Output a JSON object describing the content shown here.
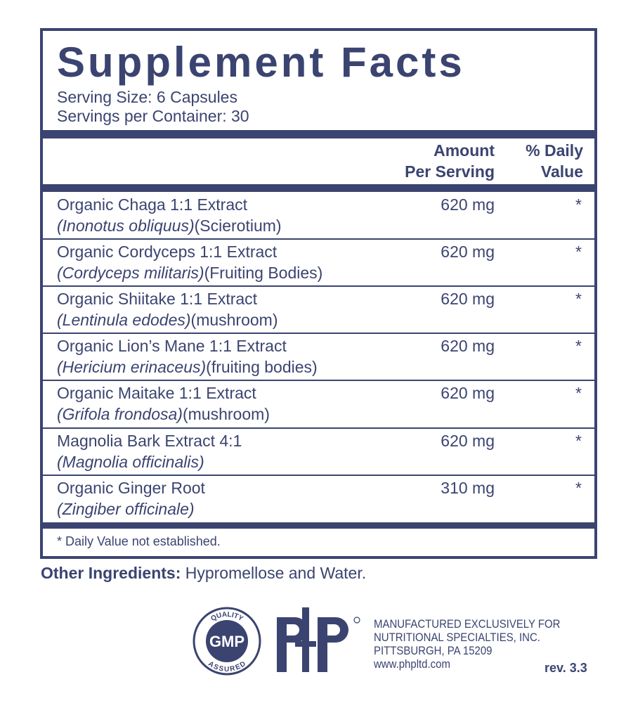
{
  "title": "Supplement Facts",
  "serving_size": "Serving Size: 6 Capsules",
  "servings_per_container": "Servings per Container: 30",
  "header": {
    "amount": [
      "Amount",
      "Per Serving"
    ],
    "daily_value": [
      "% Daily",
      "Value"
    ]
  },
  "rows": [
    {
      "name": "Organic Chaga 1:1 Extract",
      "latin": "(Inonotus obliquus)",
      "part": "(Scierotium)",
      "amount": "620 mg",
      "dv": "*"
    },
    {
      "name": "Organic Cordyceps 1:1 Extract",
      "latin": "(Cordyceps militaris)",
      "part": "(Fruiting Bodies)",
      "amount": "620 mg",
      "dv": "*"
    },
    {
      "name": "Organic Shiitake 1:1 Extract",
      "latin": "(Lentinula edodes)",
      "part": "(mushroom)",
      "amount": "620 mg",
      "dv": "*"
    },
    {
      "name": "Organic Lion’s Mane 1:1 Extract",
      "latin": "(Hericium erinaceus)",
      "part": "(fruiting bodies)",
      "amount": "620 mg",
      "dv": "*"
    },
    {
      "name": "Organic Maitake 1:1 Extract",
      "latin": "(Grifola frondosa)",
      "part": "(mushroom)",
      "amount": "620 mg",
      "dv": "*"
    },
    {
      "name": "Magnolia Bark Extract 4:1",
      "latin": "(Magnolia officinalis)",
      "part": null,
      "amount": "620 mg",
      "dv": "*"
    },
    {
      "name": "Organic Ginger Root",
      "latin": "(Zingiber officinale)",
      "part": null,
      "amount": "310 mg",
      "dv": "*"
    }
  ],
  "footnote": "* Daily Value not established.",
  "other_ingredients": {
    "label": "Other Ingredients:",
    "text": "Hypromellose and Water."
  },
  "badge": {
    "top": "QUALITY",
    "center": "GMP",
    "bottom": "ASSURED"
  },
  "manufacturer": [
    "MANUFACTURED EXCLUSIVELY FOR",
    "NUTRITIONAL SPECIALTIES, INC.",
    "PITTSBURGH, PA 15209",
    "www.phpltd.com"
  ],
  "revision": "rev. 3.3"
}
